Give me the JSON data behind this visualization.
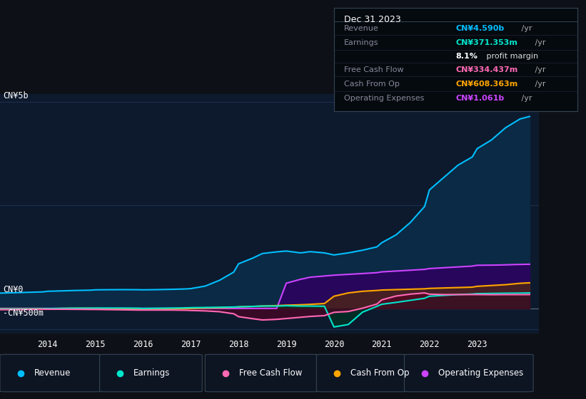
{
  "bg_color": "#0d1117",
  "plot_bg_color": "#0d1a2e",
  "title_box_bg": "#050a0f",
  "legend_bg": "#0d1422",
  "title_box": {
    "date": "Dec 31 2023",
    "rows": [
      {
        "label": "Revenue",
        "value": "CN¥4.590b",
        "unit": " /yr",
        "color": "#00bfff"
      },
      {
        "label": "Earnings",
        "value": "CN¥371.353m",
        "unit": " /yr",
        "color": "#00e5cc"
      },
      {
        "label": "",
        "bold": "8.1%",
        "unit": " profit margin",
        "color": "#ffffff"
      },
      {
        "label": "Free Cash Flow",
        "value": "CN¥334.437m",
        "unit": " /yr",
        "color": "#ff69b4"
      },
      {
        "label": "Cash From Op",
        "value": "CN¥608.363m",
        "unit": " /yr",
        "color": "#ffa500"
      },
      {
        "label": "Operating Expenses",
        "value": "CN¥1.061b",
        "unit": " /yr",
        "color": "#cc44ff"
      }
    ]
  },
  "ylabel_top": "CN¥5b",
  "ylabel_zero": "CN¥0",
  "ylabel_neg": "-CN¥500m",
  "legend": [
    {
      "label": "Revenue",
      "color": "#00bfff"
    },
    {
      "label": "Earnings",
      "color": "#00e5cc"
    },
    {
      "label": "Free Cash Flow",
      "color": "#ff69b4"
    },
    {
      "label": "Cash From Op",
      "color": "#ffa500"
    },
    {
      "label": "Operating Expenses",
      "color": "#cc44ff"
    }
  ],
  "x_ticks": [
    2014,
    2015,
    2016,
    2017,
    2018,
    2019,
    2020,
    2021,
    2022,
    2023
  ],
  "ylim": [
    -600,
    5200
  ],
  "xlim": [
    2013.0,
    2024.3
  ],
  "revenue": {
    "x": [
      2013.0,
      2013.3,
      2013.6,
      2013.9,
      2014.0,
      2014.3,
      2014.6,
      2014.9,
      2015.0,
      2015.3,
      2015.6,
      2015.9,
      2016.0,
      2016.3,
      2016.6,
      2016.9,
      2017.0,
      2017.3,
      2017.6,
      2017.9,
      2018.0,
      2018.3,
      2018.5,
      2018.8,
      2019.0,
      2019.3,
      2019.5,
      2019.8,
      2020.0,
      2020.3,
      2020.6,
      2020.9,
      2021.0,
      2021.3,
      2021.6,
      2021.9,
      2022.0,
      2022.3,
      2022.6,
      2022.9,
      2023.0,
      2023.3,
      2023.6,
      2023.9,
      2024.1
    ],
    "y": [
      370,
      380,
      390,
      400,
      415,
      425,
      435,
      442,
      450,
      453,
      455,
      453,
      450,
      455,
      462,
      472,
      480,
      540,
      680,
      880,
      1080,
      1220,
      1330,
      1370,
      1390,
      1345,
      1375,
      1345,
      1295,
      1345,
      1410,
      1490,
      1590,
      1780,
      2080,
      2470,
      2870,
      3170,
      3470,
      3670,
      3870,
      4080,
      4380,
      4590,
      4650
    ]
  },
  "earnings": {
    "x": [
      2013.0,
      2013.3,
      2013.6,
      2013.9,
      2014.0,
      2014.3,
      2014.6,
      2014.9,
      2015.0,
      2015.3,
      2015.6,
      2015.9,
      2016.0,
      2016.3,
      2016.6,
      2016.9,
      2017.0,
      2017.3,
      2017.6,
      2017.9,
      2018.0,
      2018.3,
      2018.5,
      2018.8,
      2019.0,
      2019.3,
      2019.5,
      2019.8,
      2020.0,
      2020.3,
      2020.6,
      2020.9,
      2021.0,
      2021.3,
      2021.6,
      2021.9,
      2022.0,
      2022.3,
      2022.6,
      2022.9,
      2023.0,
      2023.3,
      2023.6,
      2023.9,
      2024.1
    ],
    "y": [
      -15,
      -15,
      -12,
      -8,
      -5,
      0,
      5,
      5,
      8,
      8,
      8,
      4,
      0,
      4,
      8,
      13,
      18,
      23,
      28,
      33,
      38,
      48,
      57,
      57,
      65,
      57,
      57,
      52,
      -450,
      -390,
      -90,
      50,
      100,
      145,
      195,
      245,
      295,
      315,
      335,
      348,
      358,
      363,
      368,
      371,
      375
    ]
  },
  "free_cash_flow": {
    "x": [
      2013.0,
      2013.3,
      2013.6,
      2013.9,
      2014.0,
      2014.3,
      2014.6,
      2014.9,
      2015.0,
      2015.3,
      2015.6,
      2015.9,
      2016.0,
      2016.3,
      2016.6,
      2016.9,
      2017.0,
      2017.3,
      2017.6,
      2017.9,
      2018.0,
      2018.3,
      2018.5,
      2018.8,
      2019.0,
      2019.3,
      2019.5,
      2019.8,
      2020.0,
      2020.3,
      2020.6,
      2020.9,
      2021.0,
      2021.3,
      2021.6,
      2021.9,
      2022.0,
      2022.3,
      2022.6,
      2022.9,
      2023.0,
      2023.3,
      2023.6,
      2023.9,
      2024.1
    ],
    "y": [
      -30,
      -30,
      -25,
      -20,
      -20,
      -20,
      -22,
      -25,
      -25,
      -30,
      -35,
      -40,
      -40,
      -40,
      -40,
      -45,
      -50,
      -60,
      -80,
      -130,
      -200,
      -250,
      -280,
      -265,
      -245,
      -215,
      -195,
      -175,
      -95,
      -75,
      5,
      105,
      205,
      300,
      345,
      375,
      345,
      335,
      335,
      335,
      335,
      332,
      334,
      334,
      335
    ]
  },
  "cash_from_op": {
    "x": [
      2013.0,
      2013.3,
      2013.6,
      2013.9,
      2014.0,
      2014.3,
      2014.6,
      2014.9,
      2015.0,
      2015.3,
      2015.6,
      2015.9,
      2016.0,
      2016.3,
      2016.6,
      2016.9,
      2017.0,
      2017.3,
      2017.6,
      2017.9,
      2018.0,
      2018.3,
      2018.5,
      2018.8,
      2019.0,
      2019.3,
      2019.5,
      2019.8,
      2020.0,
      2020.3,
      2020.6,
      2020.9,
      2021.0,
      2021.3,
      2021.6,
      2021.9,
      2022.0,
      2022.3,
      2022.6,
      2022.9,
      2023.0,
      2023.3,
      2023.6,
      2023.9,
      2024.1
    ],
    "y": [
      -10,
      -10,
      -8,
      -5,
      -5,
      0,
      4,
      4,
      0,
      -5,
      -10,
      -15,
      -18,
      -14,
      -9,
      -4,
      0,
      9,
      18,
      28,
      38,
      48,
      58,
      68,
      78,
      88,
      98,
      118,
      295,
      375,
      415,
      435,
      445,
      455,
      465,
      475,
      485,
      495,
      505,
      515,
      535,
      555,
      575,
      608,
      620
    ]
  },
  "op_expenses": {
    "x": [
      2013.0,
      2013.3,
      2013.6,
      2013.9,
      2014.0,
      2014.3,
      2014.6,
      2014.9,
      2015.0,
      2015.3,
      2015.6,
      2015.9,
      2016.0,
      2016.3,
      2016.6,
      2016.9,
      2017.0,
      2017.3,
      2017.6,
      2017.9,
      2018.0,
      2018.3,
      2018.5,
      2018.8,
      2019.0,
      2019.3,
      2019.5,
      2019.8,
      2020.0,
      2020.3,
      2020.6,
      2020.9,
      2021.0,
      2021.3,
      2021.6,
      2021.9,
      2022.0,
      2022.3,
      2022.6,
      2022.9,
      2023.0,
      2023.3,
      2023.5,
      2023.75,
      2024.1
    ],
    "y": [
      0,
      0,
      0,
      0,
      0,
      0,
      0,
      0,
      0,
      0,
      0,
      0,
      0,
      0,
      0,
      0,
      0,
      0,
      0,
      0,
      0,
      0,
      0,
      0,
      610,
      705,
      755,
      785,
      805,
      825,
      845,
      865,
      885,
      905,
      925,
      945,
      965,
      985,
      1005,
      1025,
      1045,
      1048,
      1052,
      1061,
      1070
    ]
  }
}
